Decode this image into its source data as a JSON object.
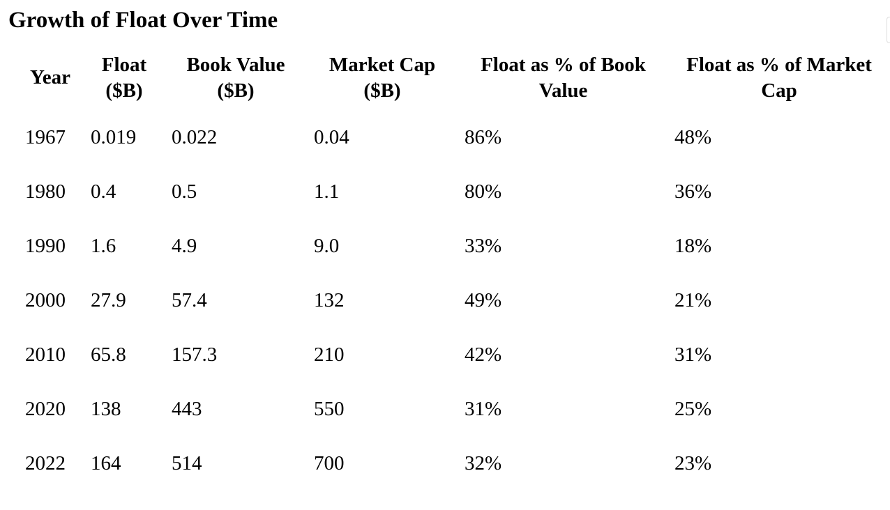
{
  "header": {
    "title": "Growth of Float Over Time"
  },
  "table": {
    "columns": [
      "Year",
      "Float ($B)",
      "Book Value ($B)",
      "Market Cap ($B)",
      "Float as % of Book Value",
      "Float as % of Market Cap"
    ],
    "rows": [
      [
        "1967",
        "0.019",
        "0.022",
        "0.04",
        "86%",
        "48%"
      ],
      [
        "1980",
        "0.4",
        "0.5",
        "1.1",
        "80%",
        "36%"
      ],
      [
        "1990",
        "1.6",
        "4.9",
        "9.0",
        "33%",
        "18%"
      ],
      [
        "2000",
        "27.9",
        "57.4",
        "132",
        "49%",
        "21%"
      ],
      [
        "2010",
        "65.8",
        "157.3",
        "210",
        "42%",
        "31%"
      ],
      [
        "2020",
        "138",
        "443",
        "550",
        "31%",
        "25%"
      ],
      [
        "2022",
        "164",
        "514",
        "700",
        "32%",
        "23%"
      ]
    ]
  }
}
